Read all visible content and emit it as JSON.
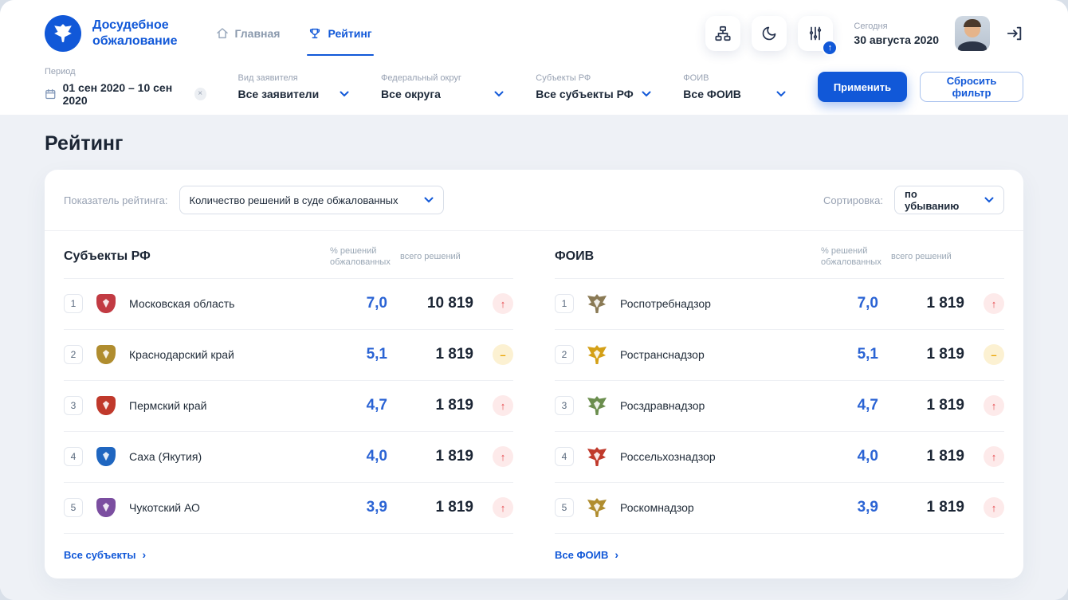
{
  "colors": {
    "accent": "#1158d8",
    "value_blue": "#2a63d4",
    "trend_up_bg": "#fdeaea",
    "trend_up_fg": "#e5484d",
    "trend_flat_bg": "#fcf1d2",
    "trend_flat_fg": "#e9a400"
  },
  "app": {
    "title_line1": "Досудебное",
    "title_line2": "обжалование"
  },
  "nav": {
    "home": "Главная",
    "rating": "Рейтинг"
  },
  "header": {
    "today_label": "Сегодня",
    "today_date": "30 августа 2020"
  },
  "filters": {
    "period": {
      "label": "Период",
      "value": "01 сен 2020 – 10 сен 2020"
    },
    "applicant": {
      "label": "Вид заявителя",
      "value": "Все заявители"
    },
    "district": {
      "label": "Федеральный округ",
      "value": "Все округа"
    },
    "subjects": {
      "label": "Субъекты РФ",
      "value": "Все субъекты РФ"
    },
    "foiv": {
      "label": "ФОИВ",
      "value": "Все ФОИВ"
    },
    "apply_label": "Применить",
    "reset_label": "Сбросить фильтр",
    "clear_icon": "×"
  },
  "page_title": "Рейтинг",
  "rating": {
    "indicator_label": "Показатель рейтинга:",
    "indicator_value": "Количество решений в суде обжалованных",
    "sort_label": "Сортировка:",
    "sort_value": "по убыванию",
    "col_percent": "% решений обжалованных",
    "col_total": "всего решений",
    "left": {
      "title": "Субъекты РФ",
      "footer_link": "Все субъекты",
      "rows": [
        {
          "rank": "1",
          "name": "Московская область",
          "percent": "7,0",
          "total": "10 819",
          "trend": "up",
          "emblem_color": "#c23b43"
        },
        {
          "rank": "2",
          "name": "Краснодарский край",
          "percent": "5,1",
          "total": "1 819",
          "trend": "flat",
          "emblem_color": "#b08d2f"
        },
        {
          "rank": "3",
          "name": "Пермский край",
          "percent": "4,7",
          "total": "1 819",
          "trend": "up",
          "emblem_color": "#c0392b"
        },
        {
          "rank": "4",
          "name": "Саха (Якутия)",
          "percent": "4,0",
          "total": "1 819",
          "trend": "up",
          "emblem_color": "#1f66c0"
        },
        {
          "rank": "5",
          "name": "Чукотский АО",
          "percent": "3,9",
          "total": "1 819",
          "trend": "up",
          "emblem_color": "#7b4ea0"
        }
      ]
    },
    "right": {
      "title": "ФОИВ",
      "footer_link": "Все ФОИВ",
      "rows": [
        {
          "rank": "1",
          "name": "Роспотребнадзор",
          "percent": "7,0",
          "total": "1 819",
          "trend": "up",
          "emblem_color": "#8a7a55"
        },
        {
          "rank": "2",
          "name": "Ространснадзор",
          "percent": "5,1",
          "total": "1 819",
          "trend": "flat",
          "emblem_color": "#d4a017"
        },
        {
          "rank": "3",
          "name": "Росздравнадзор",
          "percent": "4,7",
          "total": "1 819",
          "trend": "up",
          "emblem_color": "#6b8e4e"
        },
        {
          "rank": "4",
          "name": "Россельхознадзор",
          "percent": "4,0",
          "total": "1 819",
          "trend": "up",
          "emblem_color": "#c0392b"
        },
        {
          "rank": "5",
          "name": "Роскомнадзор",
          "percent": "3,9",
          "total": "1 819",
          "trend": "up",
          "emblem_color": "#b08d2f"
        }
      ]
    }
  }
}
